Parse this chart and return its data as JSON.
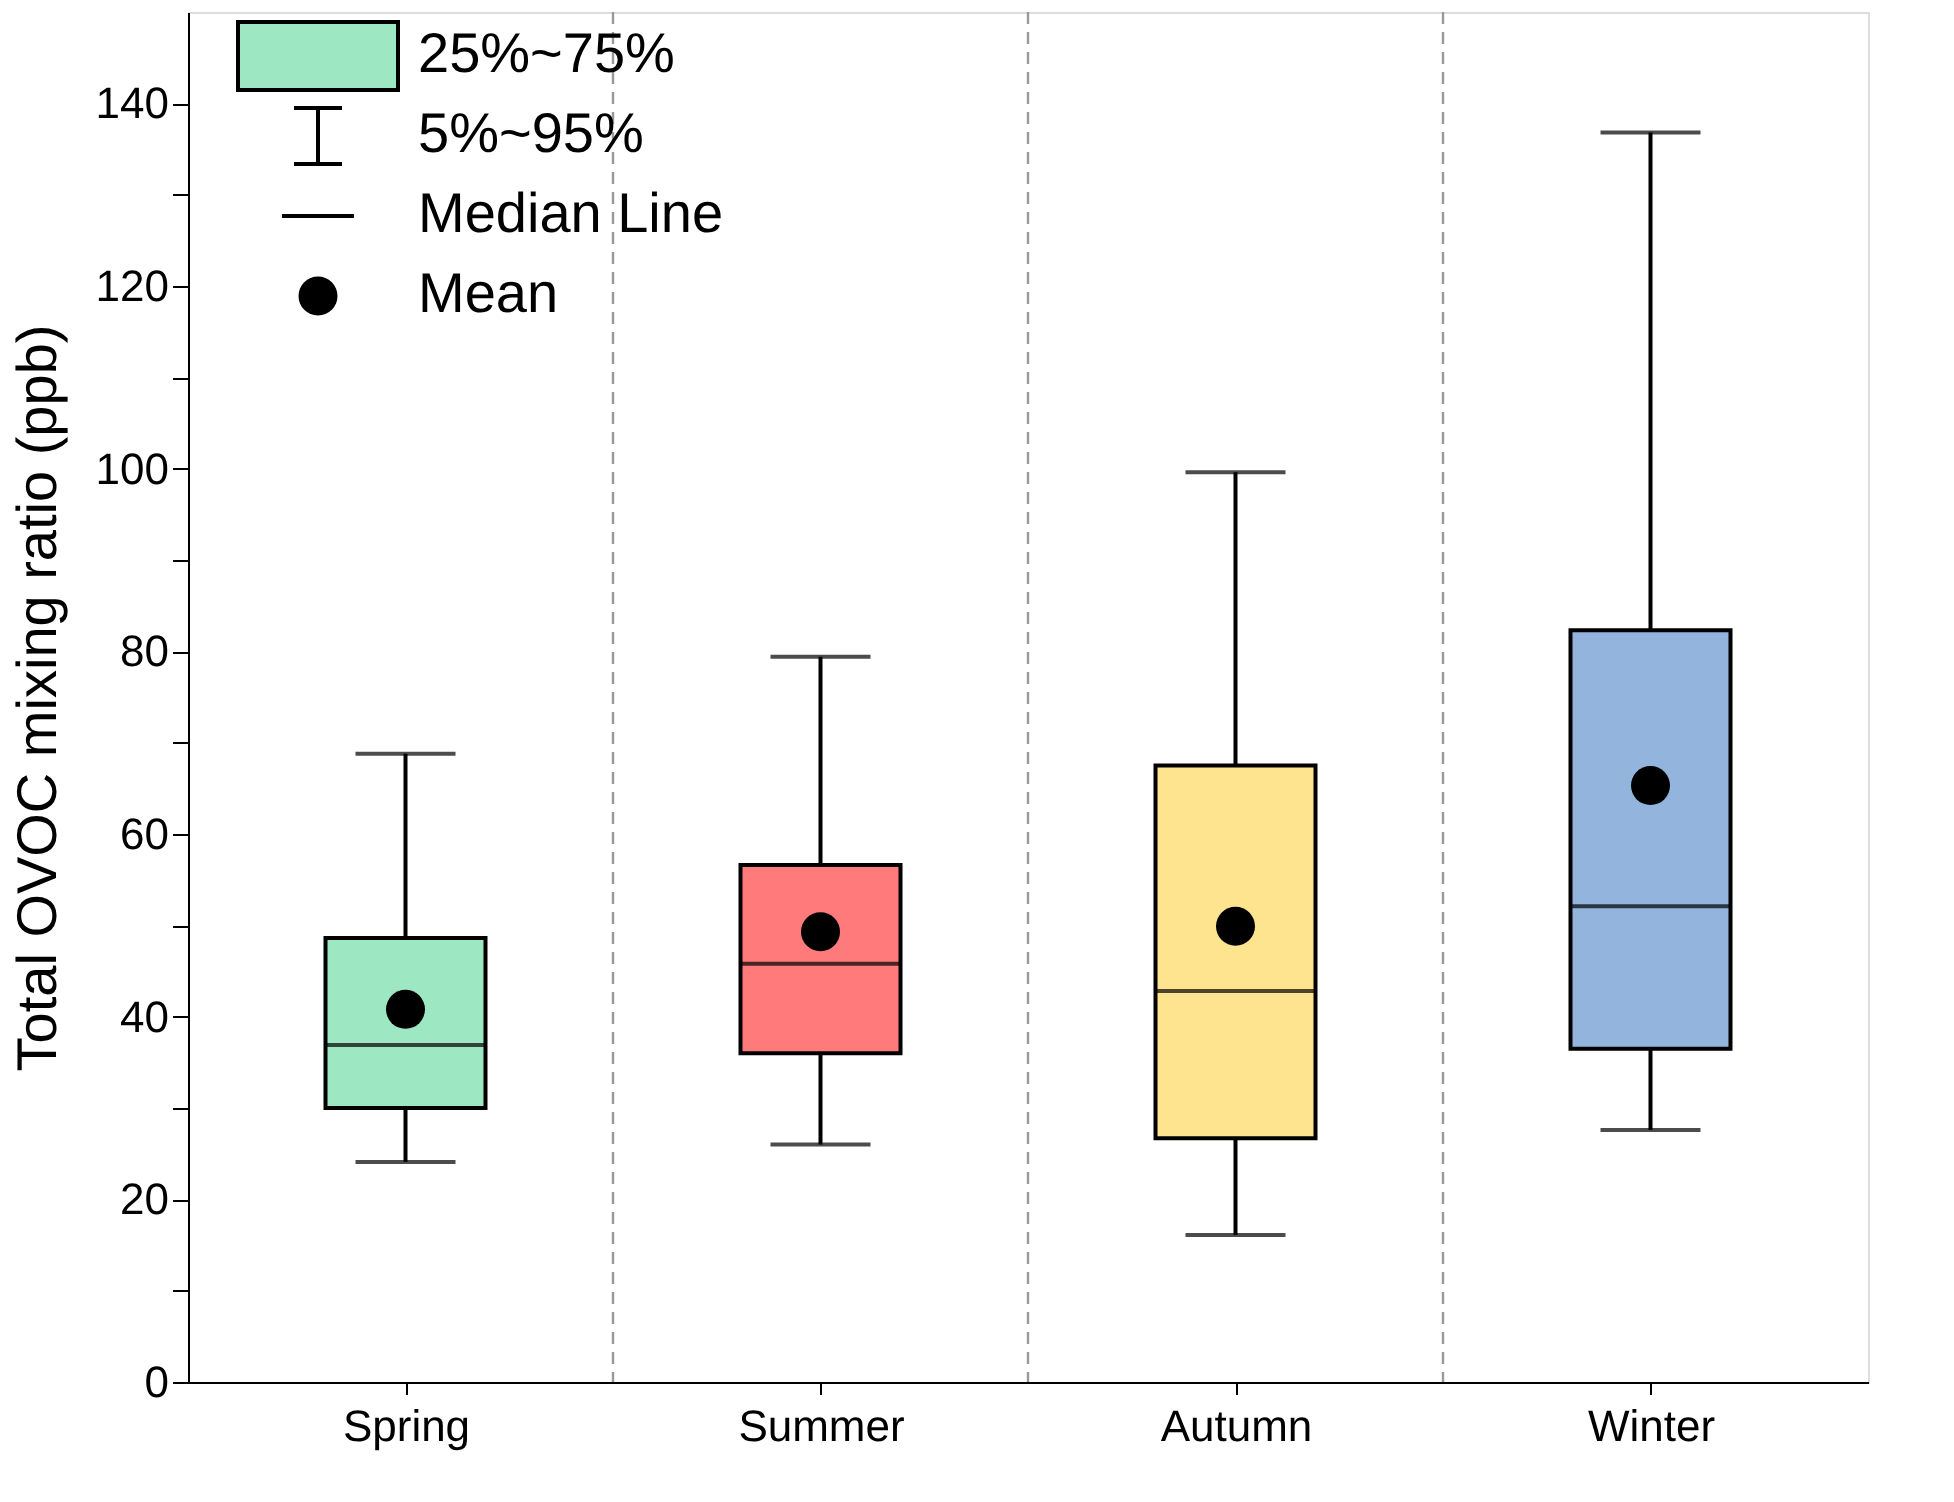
{
  "chart_data": {
    "type": "box",
    "ylabel": "Total OVOC mixing ratio (ppb)",
    "categories": [
      "Spring",
      "Summer",
      "Autumn",
      "Winter"
    ],
    "colors": [
      "#9de8c2",
      "#ff7b7b",
      "#ffe48f",
      "#92b4dd"
    ],
    "boxes": [
      {
        "low": 24.1,
        "q1": 30,
        "median": 36.9,
        "q3": 48.6,
        "high": 68.8,
        "mean": 40.8
      },
      {
        "low": 26,
        "q1": 36,
        "median": 45.8,
        "q3": 56.6,
        "high": 79.4,
        "mean": 49.3
      },
      {
        "low": 16.1,
        "q1": 26.7,
        "median": 42.8,
        "q3": 67.5,
        "high": 99.6,
        "mean": 49.9
      },
      {
        "low": 27.6,
        "q1": 36.5,
        "median": 52.1,
        "q3": 82.3,
        "high": 136.8,
        "mean": 65.3
      }
    ],
    "ylim": [
      0,
      150
    ],
    "yticks": [
      0,
      {
        "value": 10,
        "label": null
      },
      20,
      {
        "value": 30,
        "label": null
      },
      40,
      {
        "value": 50,
        "label": null
      },
      60,
      {
        "value": 70,
        "label": null
      },
      80,
      {
        "value": 90,
        "label": null
      },
      100,
      {
        "value": 110,
        "label": null
      },
      120,
      {
        "value": 130,
        "label": null
      },
      140
    ],
    "grid": "x",
    "annotations": [
      "25%~75%",
      "5%~95%",
      "Median Line",
      "Mean"
    ]
  }
}
